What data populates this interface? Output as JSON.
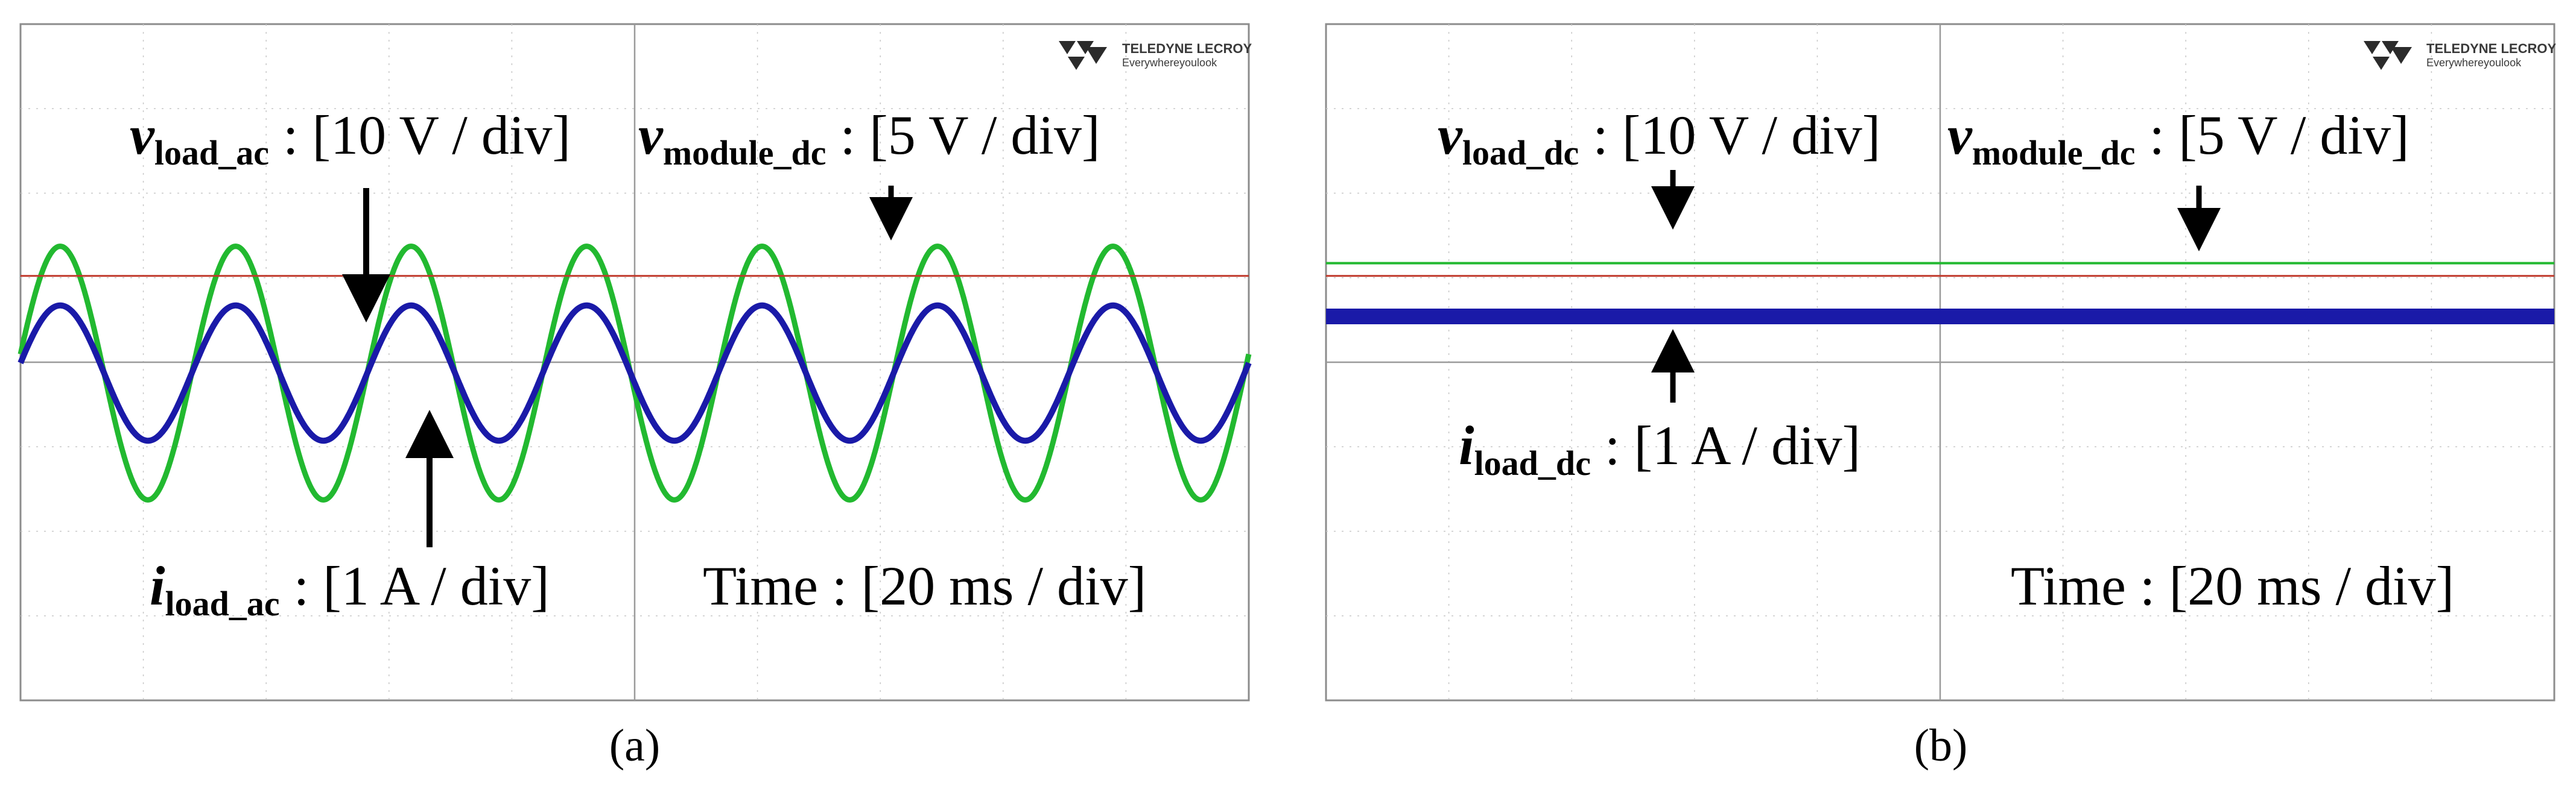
{
  "panels": [
    {
      "caption": "(a)",
      "logo": {
        "brand": "TELEDYNE LECROY",
        "tagline": "Everywhereyoulook"
      },
      "labels": {
        "voltage_var": "v",
        "voltage_sub": "load_ac",
        "voltage_scale": " : [10 V / div]",
        "module_var": "v",
        "module_sub": "module_dc",
        "module_scale": " : [5 V / div]",
        "current_var": "i",
        "current_sub": "load_ac",
        "current_scale": " : [1 A / div]",
        "time": "Time : [20 ms / div]"
      }
    },
    {
      "caption": "(b)",
      "logo": {
        "brand": "TELEDYNE LECROY",
        "tagline": "Everywhereyoulook"
      },
      "labels": {
        "voltage_var": "v",
        "voltage_sub": "load_dc",
        "voltage_scale": " : [10 V / div]",
        "module_var": "v",
        "module_sub": "module_dc",
        "module_scale": " : [5 V / div]",
        "current_var": "i",
        "current_sub": "load_dc",
        "current_scale": " : [1 A / div]",
        "time": "Time : [20 ms / div]"
      }
    }
  ],
  "colors": {
    "green": "#22b930",
    "blue": "#1a1aa8",
    "red": "#c0392b",
    "grid": "#c8c8c8",
    "frame": "#8c8c8c"
  },
  "chart_data": [
    {
      "type": "line",
      "grid": {
        "x_divisions": 10,
        "y_divisions": 8
      },
      "x_scale": "20 ms / div",
      "series": [
        {
          "name": "v_load_ac",
          "color": "#22b930",
          "shape": "sine",
          "cycles": 7,
          "amplitude_div": 1.5,
          "offset_div": 0,
          "scale": "10 V / div"
        },
        {
          "name": "i_load_ac",
          "color": "#1a1aa8",
          "shape": "sine",
          "cycles": 7,
          "amplitude_div": 0.8,
          "offset_div": 0,
          "scale": "1 A / div"
        },
        {
          "name": "v_module_dc",
          "color": "#c0392b",
          "shape": "dc",
          "offset_div": 1.15,
          "scale": "5 V / div"
        }
      ]
    },
    {
      "type": "line",
      "grid": {
        "x_divisions": 10,
        "y_divisions": 8
      },
      "x_scale": "20 ms / div",
      "series": [
        {
          "name": "v_load_dc",
          "color": "#22b930",
          "shape": "dc",
          "offset_div": 1.3,
          "scale": "10 V / div"
        },
        {
          "name": "v_module_dc",
          "color": "#c0392b",
          "shape": "dc",
          "offset_div": 1.15,
          "scale": "5 V / div"
        },
        {
          "name": "i_load_dc",
          "color": "#1a1aa8",
          "shape": "dc",
          "offset_div": 0.67,
          "scale": "1 A / div"
        }
      ]
    }
  ]
}
